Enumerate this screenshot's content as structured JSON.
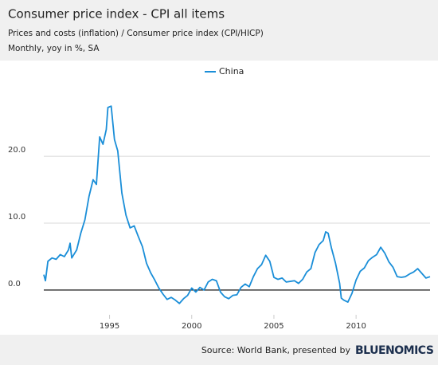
{
  "chart_data": {
    "type": "line",
    "title": "Consumer price index - CPI all items",
    "subtitle": "Prices and costs (inflation) / Consumer price index (CPI/HICP)",
    "unit_note": "Monthly, yoy in %, SA",
    "source": "Source: World Bank, presented by",
    "logo": "BLUENOMICS",
    "xlim": [
      1991,
      2014.5
    ],
    "xticks": [
      1995,
      2000,
      2005,
      2010
    ],
    "ylim": [
      -3.7,
      31.1
    ],
    "yticks": [
      {
        "value": 0,
        "label": "0.0"
      },
      {
        "value": 10,
        "label": "10.0"
      },
      {
        "value": 20,
        "label": "20.0"
      }
    ],
    "grid": true,
    "legend": "top",
    "x": [
      1991.0,
      1991.1,
      1991.25,
      1991.5,
      1991.75,
      1992.0,
      1992.25,
      1992.5,
      1992.6,
      1992.7,
      1993.0,
      1993.25,
      1993.5,
      1993.75,
      1994.0,
      1994.2,
      1994.4,
      1994.6,
      1994.8,
      1994.9,
      1995.1,
      1995.3,
      1995.5,
      1995.75,
      1996.0,
      1996.25,
      1996.5,
      1996.75,
      1997.0,
      1997.25,
      1997.5,
      1997.75,
      1998.0,
      1998.25,
      1998.5,
      1998.75,
      1999.0,
      1999.25,
      1999.5,
      1999.75,
      2000.0,
      2000.25,
      2000.5,
      2000.75,
      2001.0,
      2001.25,
      2001.5,
      2001.75,
      2002.0,
      2002.25,
      2002.5,
      2002.75,
      2003.0,
      2003.25,
      2003.5,
      2003.75,
      2004.0,
      2004.25,
      2004.5,
      2004.75,
      2005.0,
      2005.25,
      2005.5,
      2005.75,
      2006.0,
      2006.25,
      2006.5,
      2006.75,
      2007.0,
      2007.25,
      2007.5,
      2007.75,
      2008.0,
      2008.15,
      2008.3,
      2008.5,
      2008.75,
      2009.0,
      2009.1,
      2009.25,
      2009.5,
      2009.75,
      2010.0,
      2010.25,
      2010.5,
      2010.75,
      2011.0,
      2011.25,
      2011.5,
      2011.75,
      2012.0,
      2012.25,
      2012.5,
      2012.75,
      2013.0,
      2013.25,
      2013.5,
      2013.75,
      2014.0,
      2014.25,
      2014.5
    ],
    "series": [
      {
        "name": "China",
        "color": "#1a8ed8",
        "values": [
          2.3,
          1.4,
          4.3,
          4.8,
          4.6,
          5.3,
          5.0,
          6.0,
          7.0,
          4.8,
          6.0,
          8.5,
          10.5,
          14.0,
          16.5,
          15.8,
          22.9,
          21.8,
          24.0,
          27.3,
          27.5,
          22.5,
          20.8,
          14.5,
          11.2,
          9.3,
          9.6,
          8.0,
          6.5,
          4.0,
          2.6,
          1.5,
          0.3,
          -0.6,
          -1.4,
          -1.1,
          -1.5,
          -2.0,
          -1.3,
          -0.8,
          0.3,
          -0.3,
          0.4,
          0.0,
          1.2,
          1.6,
          1.4,
          -0.3,
          -1.0,
          -1.3,
          -0.8,
          -0.7,
          0.4,
          0.9,
          0.5,
          2.0,
          3.2,
          3.8,
          5.2,
          4.3,
          1.9,
          1.6,
          1.8,
          1.2,
          1.3,
          1.4,
          1.0,
          1.6,
          2.7,
          3.2,
          5.6,
          6.8,
          7.4,
          8.7,
          8.5,
          6.3,
          4.0,
          1.0,
          -1.2,
          -1.5,
          -1.8,
          -0.5,
          1.5,
          2.8,
          3.3,
          4.4,
          4.9,
          5.3,
          6.4,
          5.5,
          4.2,
          3.4,
          2.0,
          1.9,
          2.0,
          2.4,
          2.7,
          3.2,
          2.5,
          1.8,
          2.0
        ]
      }
    ]
  }
}
